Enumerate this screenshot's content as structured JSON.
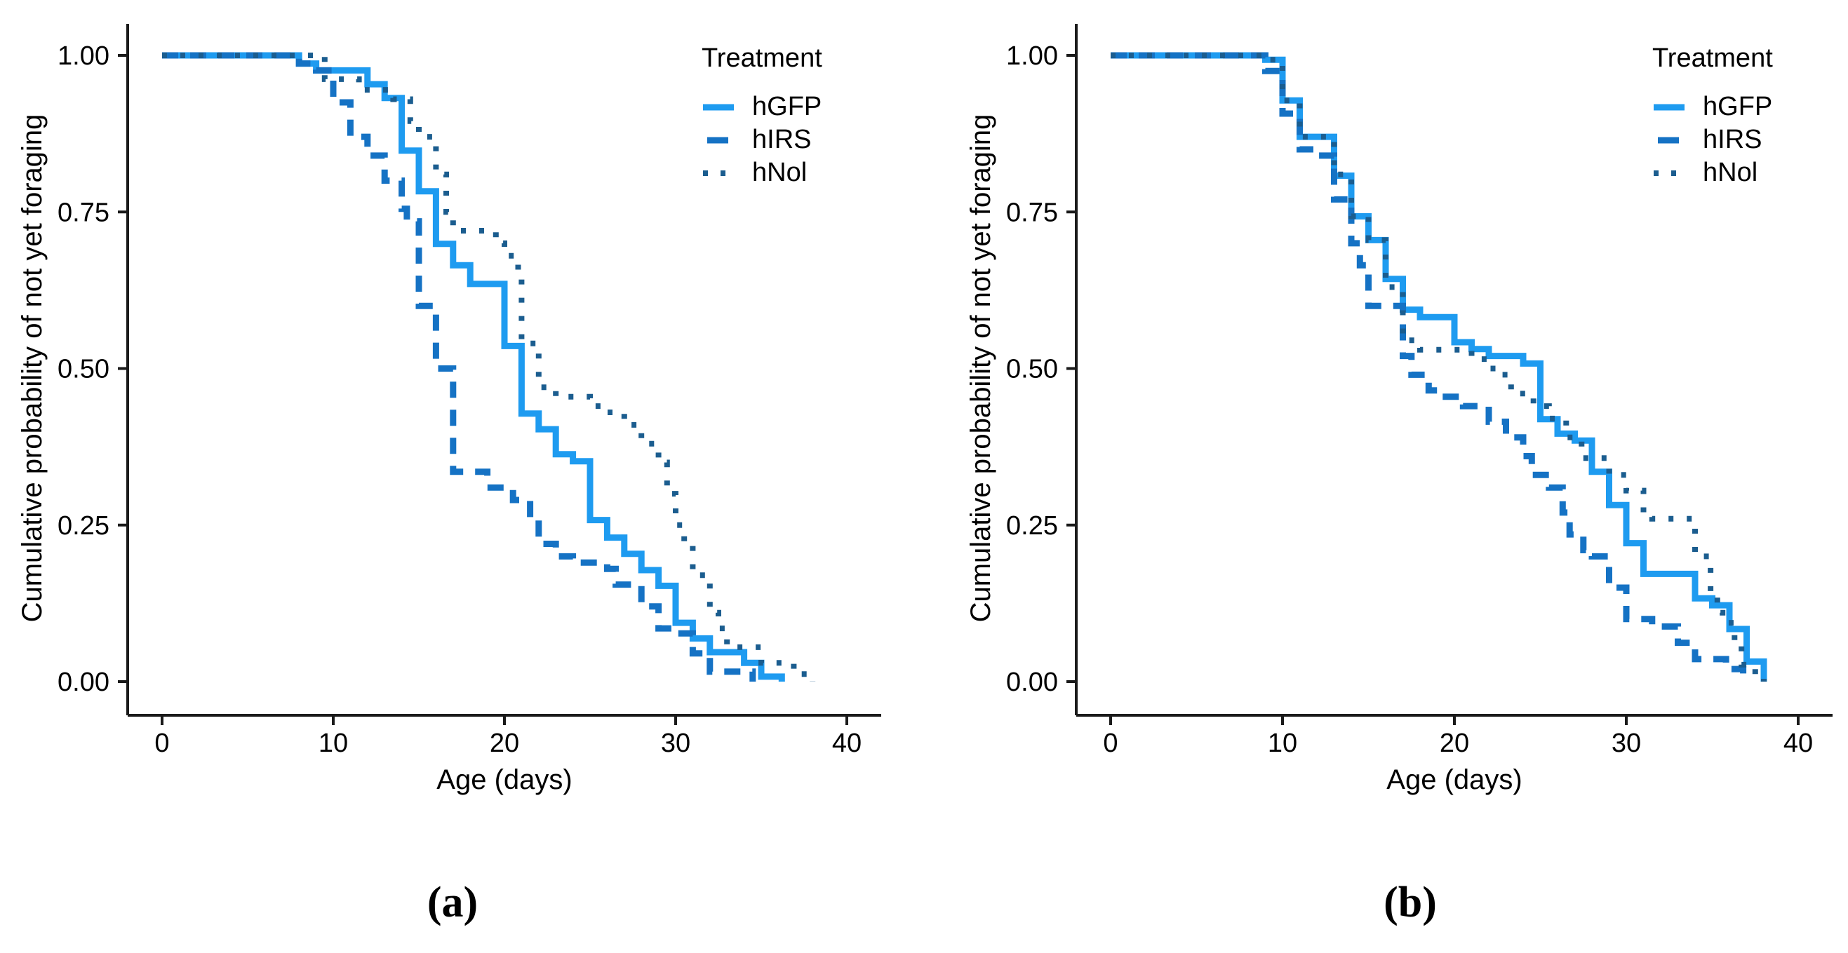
{
  "figure": {
    "background": "#ffffff",
    "panel_labels": [
      "(a)",
      "(b)"
    ]
  },
  "axes": {
    "x_label": "Age (days)",
    "y_label": "Cumulative probability of not yet foraging",
    "x_ticks": [
      "0",
      "10",
      "20",
      "30",
      "40"
    ],
    "x_tick_values": [
      0,
      10,
      20,
      30,
      40
    ],
    "y_ticks": [
      "1.00",
      "0.75",
      "0.50",
      "0.25",
      "0.00"
    ],
    "y_tick_values": [
      1.0,
      0.75,
      0.5,
      0.25,
      0.0
    ],
    "x_range": [
      0,
      40
    ],
    "y_range": [
      0,
      1
    ],
    "axis_color": "#1a1a1a"
  },
  "legend": {
    "title": "Treatment",
    "entries": [
      {
        "label": "hGFP",
        "style": "solid",
        "color": "#1E9BF0"
      },
      {
        "label": "hIRS",
        "style": "dashed",
        "color": "#1572C4"
      },
      {
        "label": "hNol",
        "style": "dotted",
        "color": "#1B5D8F"
      }
    ]
  },
  "chart_data": [
    {
      "type": "line",
      "subtype": "kaplan-meier-step",
      "panel": "(a)",
      "title": "",
      "xlabel": "Age (days)",
      "ylabel": "Cumulative probability of not yet foraging",
      "xlim": [
        0,
        42
      ],
      "ylim": [
        0,
        1
      ],
      "grid": false,
      "legend_title": "Treatment",
      "legend_position": "top-right",
      "series": [
        {
          "name": "hGFP",
          "style": "solid",
          "color": "#1E9BF0",
          "points": [
            [
              0,
              1
            ],
            [
              8,
              0.987
            ],
            [
              9,
              0.976
            ],
            [
              12,
              0.954
            ],
            [
              13,
              0.932
            ],
            [
              14,
              0.848
            ],
            [
              15,
              0.783
            ],
            [
              16,
              0.699
            ],
            [
              17,
              0.665
            ],
            [
              18,
              0.635
            ],
            [
              20,
              0.536
            ],
            [
              21,
              0.428
            ],
            [
              22,
              0.403
            ],
            [
              23,
              0.363
            ],
            [
              24,
              0.352
            ],
            [
              25,
              0.258
            ],
            [
              26,
              0.23
            ],
            [
              27,
              0.204
            ],
            [
              28,
              0.178
            ],
            [
              29,
              0.153
            ],
            [
              30,
              0.094
            ],
            [
              31,
              0.069
            ],
            [
              32,
              0.047
            ],
            [
              34,
              0.03
            ],
            [
              35,
              0.008
            ],
            [
              36.2,
              0
            ]
          ]
        },
        {
          "name": "hIRS",
          "style": "dashed",
          "color": "#1572C4",
          "points": [
            [
              0,
              1
            ],
            [
              8,
              0.987
            ],
            [
              9,
              0.976
            ],
            [
              10,
              0.925
            ],
            [
              11,
              0.87
            ],
            [
              12,
              0.84
            ],
            [
              13,
              0.8
            ],
            [
              14,
              0.755
            ],
            [
              14.3,
              0.735
            ],
            [
              15,
              0.6
            ],
            [
              16,
              0.5
            ],
            [
              17,
              0.335
            ],
            [
              19,
              0.31
            ],
            [
              20.5,
              0.29
            ],
            [
              21.5,
              0.26
            ],
            [
              22,
              0.22
            ],
            [
              23,
              0.2
            ],
            [
              24,
              0.19
            ],
            [
              26,
              0.18
            ],
            [
              26.5,
              0.155
            ],
            [
              28,
              0.12
            ],
            [
              29,
              0.085
            ],
            [
              30,
              0.077
            ],
            [
              31,
              0.045
            ],
            [
              32,
              0.016
            ],
            [
              34.5,
              0
            ]
          ]
        },
        {
          "name": "hNol",
          "style": "dotted",
          "color": "#1B5D8F",
          "points": [
            [
              0,
              1
            ],
            [
              9.5,
              0.962
            ],
            [
              11.5,
              0.945
            ],
            [
              13.5,
              0.93
            ],
            [
              14.5,
              0.895
            ],
            [
              15,
              0.87
            ],
            [
              16,
              0.81
            ],
            [
              16.6,
              0.75
            ],
            [
              17,
              0.72
            ],
            [
              19.5,
              0.7
            ],
            [
              20,
              0.68
            ],
            [
              20.8,
              0.65
            ],
            [
              21,
              0.54
            ],
            [
              22,
              0.47
            ],
            [
              23,
              0.455
            ],
            [
              25,
              0.44
            ],
            [
              26,
              0.43
            ],
            [
              27,
              0.41
            ],
            [
              28,
              0.38
            ],
            [
              29,
              0.35
            ],
            [
              29.5,
              0.3
            ],
            [
              30,
              0.25
            ],
            [
              30.5,
              0.22
            ],
            [
              31,
              0.17
            ],
            [
              32,
              0.11
            ],
            [
              32.5,
              0.085
            ],
            [
              33,
              0.055
            ],
            [
              35,
              0.03
            ],
            [
              36.9,
              0.012
            ],
            [
              38,
              0
            ]
          ]
        }
      ]
    },
    {
      "type": "line",
      "subtype": "kaplan-meier-step",
      "panel": "(b)",
      "title": "",
      "xlabel": "Age (days)",
      "ylabel": "Cumulative probability of not yet foraging",
      "xlim": [
        0,
        42
      ],
      "ylim": [
        0,
        1
      ],
      "grid": false,
      "legend_title": "Treatment",
      "legend_position": "top-right",
      "series": [
        {
          "name": "hGFP",
          "style": "solid",
          "color": "#1E9BF0",
          "points": [
            [
              0,
              1
            ],
            [
              9,
              0.993
            ],
            [
              10,
              0.928
            ],
            [
              11,
              0.87
            ],
            [
              13,
              0.808
            ],
            [
              14,
              0.743
            ],
            [
              15,
              0.705
            ],
            [
              16,
              0.643
            ],
            [
              17,
              0.594
            ],
            [
              18,
              0.582
            ],
            [
              20,
              0.542
            ],
            [
              21,
              0.531
            ],
            [
              22,
              0.52
            ],
            [
              24,
              0.508
            ],
            [
              25,
              0.419
            ],
            [
              26,
              0.396
            ],
            [
              27,
              0.385
            ],
            [
              28,
              0.335
            ],
            [
              29,
              0.282
            ],
            [
              30,
              0.221
            ],
            [
              31,
              0.172
            ],
            [
              34,
              0.133
            ],
            [
              35,
              0.122
            ],
            [
              36,
              0.084
            ],
            [
              37,
              0.032
            ],
            [
              38,
              0
            ]
          ]
        },
        {
          "name": "hIRS",
          "style": "dashed",
          "color": "#1572C4",
          "points": [
            [
              0,
              1
            ],
            [
              9,
              0.975
            ],
            [
              10,
              0.907
            ],
            [
              11,
              0.85
            ],
            [
              12,
              0.84
            ],
            [
              13,
              0.77
            ],
            [
              14,
              0.7
            ],
            [
              14.5,
              0.665
            ],
            [
              15,
              0.6
            ],
            [
              17,
              0.52
            ],
            [
              17.5,
              0.49
            ],
            [
              18.5,
              0.465
            ],
            [
              19.5,
              0.455
            ],
            [
              20.5,
              0.44
            ],
            [
              22,
              0.415
            ],
            [
              23,
              0.39
            ],
            [
              24,
              0.36
            ],
            [
              24.5,
              0.33
            ],
            [
              25.5,
              0.31
            ],
            [
              26.3,
              0.27
            ],
            [
              26.7,
              0.235
            ],
            [
              27.5,
              0.21
            ],
            [
              28,
              0.2
            ],
            [
              29,
              0.15
            ],
            [
              30,
              0.1
            ],
            [
              31.5,
              0.088
            ],
            [
              33,
              0.062
            ],
            [
              34,
              0.036
            ],
            [
              35.8,
              0.02
            ],
            [
              36.8,
              0
            ]
          ]
        },
        {
          "name": "hNol",
          "style": "dotted",
          "color": "#1B5D8F",
          "points": [
            [
              0,
              1
            ],
            [
              9,
              0.993
            ],
            [
              10,
              0.928
            ],
            [
              11,
              0.87
            ],
            [
              13,
              0.81
            ],
            [
              14,
              0.743
            ],
            [
              15,
              0.705
            ],
            [
              16,
              0.63
            ],
            [
              17,
              0.545
            ],
            [
              18,
              0.53
            ],
            [
              21,
              0.515
            ],
            [
              22,
              0.5
            ],
            [
              22.7,
              0.49
            ],
            [
              23.3,
              0.46
            ],
            [
              24.6,
              0.44
            ],
            [
              25.5,
              0.42
            ],
            [
              26.5,
              0.39
            ],
            [
              27.4,
              0.357
            ],
            [
              29,
              0.33
            ],
            [
              30,
              0.305
            ],
            [
              31,
              0.27
            ],
            [
              31.5,
              0.26
            ],
            [
              34,
              0.2
            ],
            [
              34.9,
              0.14
            ],
            [
              35.3,
              0.11
            ],
            [
              35.6,
              0.094
            ],
            [
              36.3,
              0.065
            ],
            [
              36.7,
              0.027
            ],
            [
              37.5,
              0.005
            ],
            [
              38,
              0
            ]
          ]
        }
      ]
    }
  ]
}
